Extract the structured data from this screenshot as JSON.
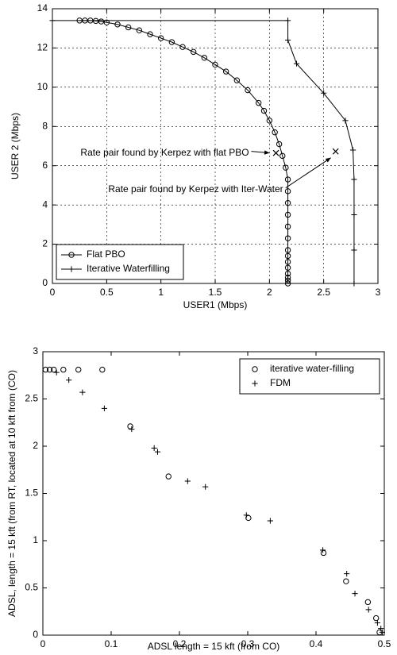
{
  "chart_data": [
    {
      "type": "line",
      "xlabel": "USER1 (Mbps)",
      "ylabel": "USER 2 (Mbps)",
      "xlim": [
        0,
        3
      ],
      "ylim": [
        0,
        14
      ],
      "xticks": [
        0,
        0.5,
        1,
        1.5,
        2,
        2.5,
        3
      ],
      "yticks": [
        0,
        2,
        4,
        6,
        8,
        10,
        12,
        14
      ],
      "grid": true,
      "legend": "lower left",
      "series": [
        {
          "name": "Flat PBO",
          "color": "#000000",
          "marker": "circle",
          "x": [
            0.25,
            0.3,
            0.35,
            0.4,
            0.45,
            0.5,
            0.6,
            0.7,
            0.8,
            0.9,
            1.0,
            1.1,
            1.2,
            1.3,
            1.4,
            1.5,
            1.6,
            1.7,
            1.8,
            1.9,
            1.95,
            2.0,
            2.05,
            2.09,
            2.12,
            2.15,
            2.17,
            2.17,
            2.17,
            2.17,
            2.17,
            2.17,
            2.17,
            2.17,
            2.17,
            2.17,
            2.17,
            2.17,
            2.17,
            2.17
          ],
          "values": [
            13.4,
            13.4,
            13.4,
            13.38,
            13.35,
            13.3,
            13.2,
            13.05,
            12.9,
            12.7,
            12.5,
            12.3,
            12.05,
            11.8,
            11.5,
            11.15,
            10.8,
            10.35,
            9.85,
            9.2,
            8.8,
            8.3,
            7.7,
            7.1,
            6.5,
            5.9,
            5.3,
            4.7,
            4.1,
            3.5,
            2.9,
            2.3,
            1.7,
            1.4,
            1.1,
            0.8,
            0.5,
            0.3,
            0.15,
            0
          ]
        },
        {
          "name": "Iterative Waterfilling",
          "color": "#000000",
          "marker": "plus",
          "x": [
            0,
            2.17,
            2.17,
            2.25,
            2.5,
            2.7,
            2.77,
            2.78,
            2.78,
            2.78,
            2.78
          ],
          "values": [
            13.4,
            13.4,
            12.4,
            11.2,
            9.7,
            8.3,
            6.8,
            5.3,
            3.5,
            1.7,
            0
          ]
        }
      ],
      "annotations": [
        {
          "text": "Rate pair found by Kerpez with flat PBO",
          "x": 2.06,
          "y": 6.65
        },
        {
          "text": "Rate pair found by Kerpez with Iter-Water",
          "x": 2.61,
          "y": 6.73
        }
      ]
    },
    {
      "type": "scatter",
      "xlabel": "ADSL length = 15 kft (from CO)",
      "ylabel": "ADSL, length = 15 kft (from RT, located at 10 kft from (CO)",
      "xlim": [
        0,
        0.5
      ],
      "ylim": [
        0,
        3
      ],
      "xticks": [
        0,
        0.1,
        0.2,
        0.3,
        0.4,
        0.5
      ],
      "yticks": [
        0,
        0.5,
        1,
        1.5,
        2,
        2.5,
        3
      ],
      "grid": false,
      "legend": "upper right",
      "series": [
        {
          "name": "iterative water-filling",
          "color": "#000000",
          "marker": "circle",
          "x": [
            0.004,
            0.01,
            0.016,
            0.03,
            0.052,
            0.087,
            0.128,
            0.184,
            0.301,
            0.411,
            0.444,
            0.476,
            0.488,
            0.493
          ],
          "values": [
            2.81,
            2.81,
            2.81,
            2.81,
            2.81,
            2.81,
            2.21,
            1.68,
            1.24,
            0.87,
            0.57,
            0.35,
            0.18,
            0.03
          ]
        },
        {
          "name": "FDM",
          "color": "#000000",
          "marker": "plus",
          "x": [
            0.02,
            0.038,
            0.058,
            0.09,
            0.13,
            0.163,
            0.168,
            0.212,
            0.238,
            0.298,
            0.333,
            0.41,
            0.445,
            0.457,
            0.477,
            0.49,
            0.495,
            0.497
          ],
          "values": [
            2.78,
            2.7,
            2.57,
            2.4,
            2.18,
            1.98,
            1.94,
            1.63,
            1.57,
            1.27,
            1.21,
            0.9,
            0.65,
            0.44,
            0.27,
            0.13,
            0.07,
            0.03
          ]
        }
      ]
    }
  ]
}
